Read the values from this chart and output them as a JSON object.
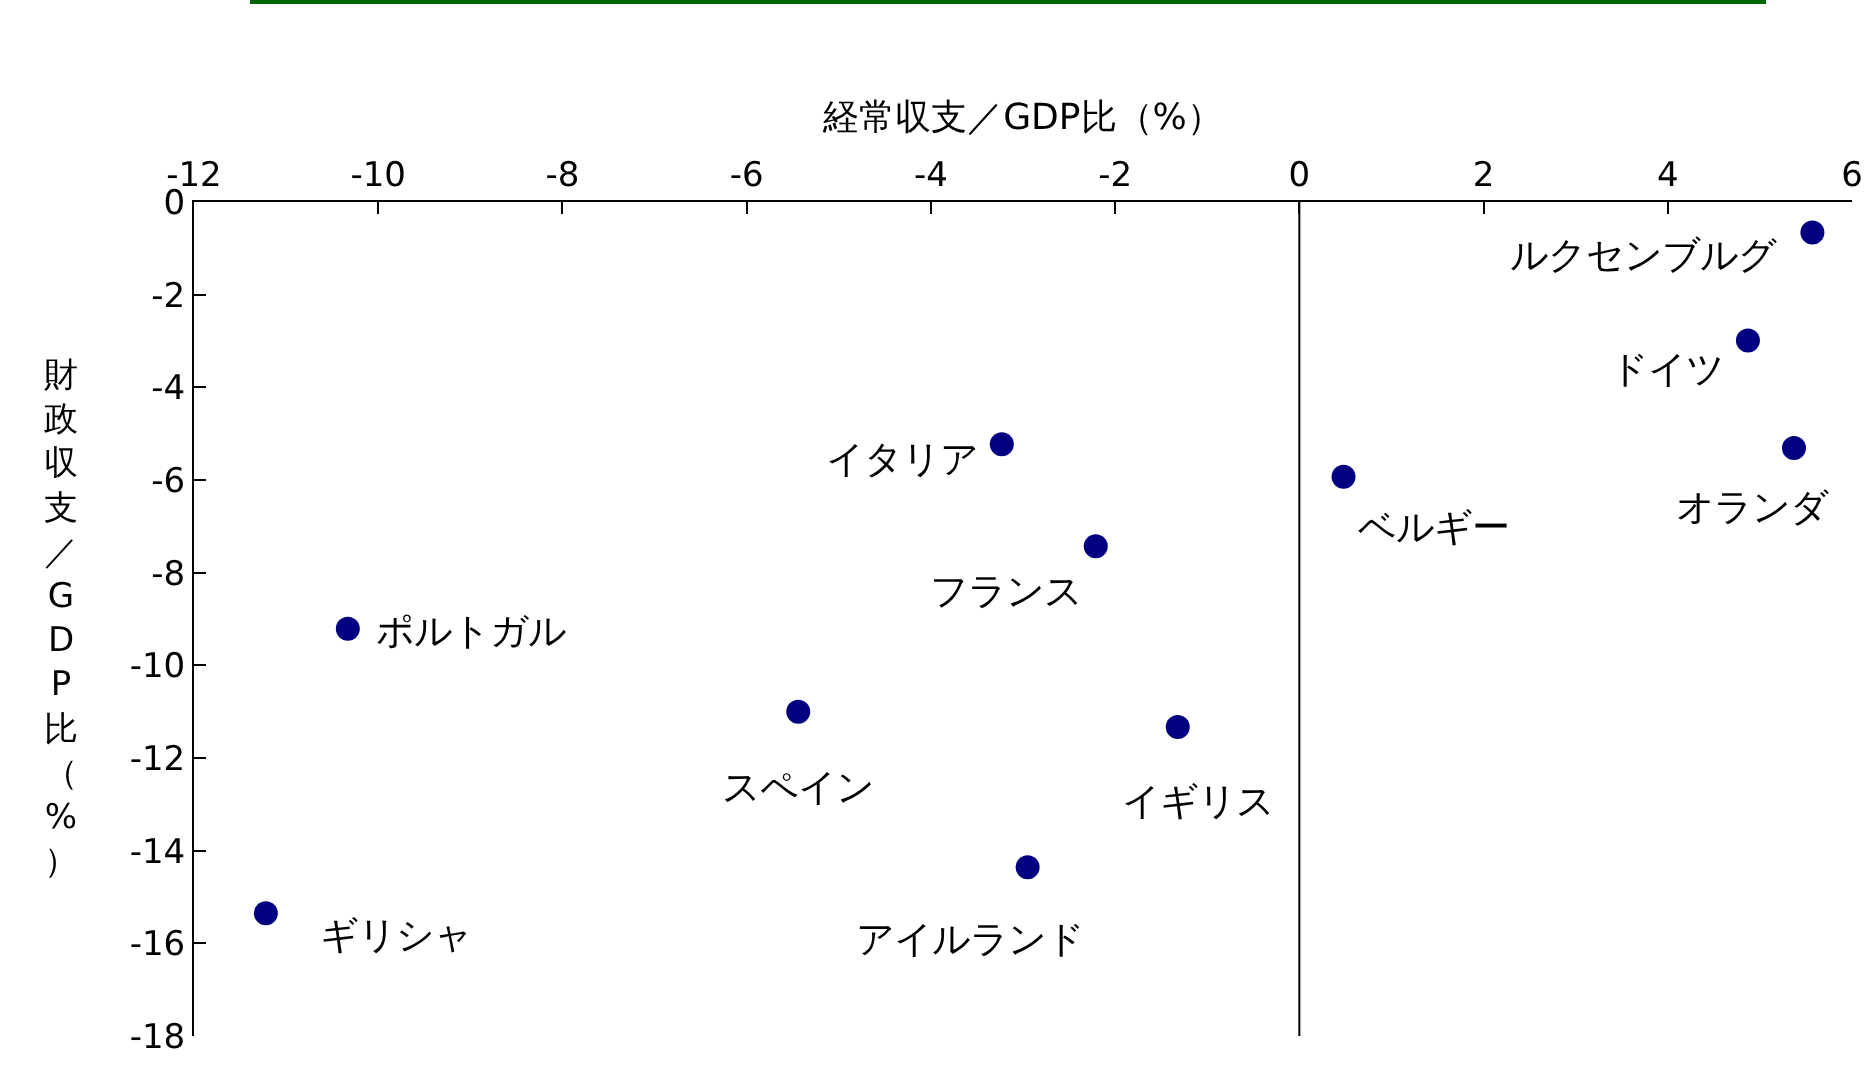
{
  "chart_data": {
    "type": "scatter",
    "xlabel": "経常収支／GDP比（%）",
    "ylabel": "財政収支／GDP比（%）",
    "x": [
      5.57,
      4.87,
      5.37,
      0.48,
      -3.23,
      -2.21,
      -10.33,
      -5.44,
      -1.32,
      -2.95,
      -11.22
    ],
    "series": [
      {
        "color": "#000080",
        "values": [
          -0.66,
          -2.99,
          -5.31,
          -5.93,
          -5.23,
          -7.43,
          -9.21,
          -11.0,
          -11.33,
          -14.36,
          -15.35
        ]
      }
    ],
    "annotations": [
      {
        "text": "ルクセンブルグ",
        "x": 5.57,
        "y": -0.66
      },
      {
        "text": "ドイツ",
        "x": 4.87,
        "y": -2.99
      },
      {
        "text": "オランダ",
        "x": 5.37,
        "y": -5.31
      },
      {
        "text": "ベルギー",
        "x": 0.48,
        "y": -5.93
      },
      {
        "text": "イタリア",
        "x": -3.23,
        "y": -5.23
      },
      {
        "text": "フランス",
        "x": -2.21,
        "y": -7.43
      },
      {
        "text": "ポルトガル",
        "x": -10.33,
        "y": -9.21
      },
      {
        "text": "スペイン",
        "x": -5.44,
        "y": -11.0
      },
      {
        "text": "イギリス",
        "x": -1.32,
        "y": -11.33
      },
      {
        "text": "アイルランド",
        "x": -2.95,
        "y": -14.36
      },
      {
        "text": "ギリシャ",
        "x": -11.22,
        "y": -15.35
      }
    ],
    "xlim": [
      -12,
      6
    ],
    "xticks": [
      -12,
      -10,
      -8,
      -6,
      -4,
      -2,
      0,
      2,
      4,
      6
    ],
    "ylim": [
      -18,
      0
    ],
    "yticks": [
      -18,
      -16,
      -14,
      -12,
      -10,
      -8,
      -6,
      -4,
      -2,
      0
    ],
    "ref_lines": [
      {
        "axis": "x",
        "value": 0,
        "color": "#000000"
      }
    ],
    "grid": false,
    "marker": "circle"
  }
}
